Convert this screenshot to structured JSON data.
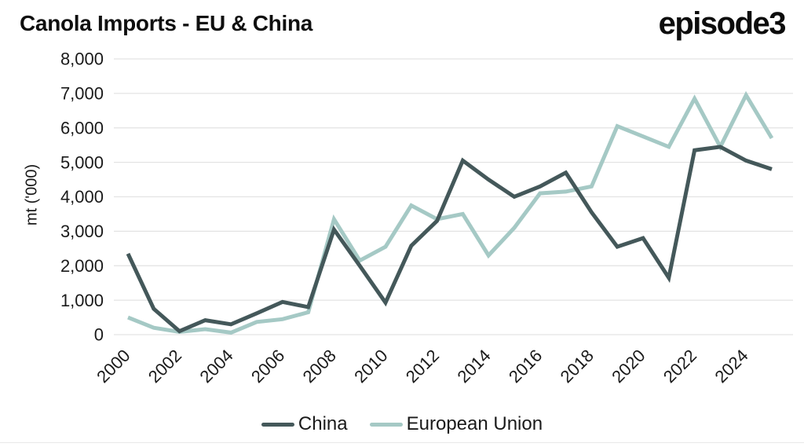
{
  "header": {
    "title": "Canola Imports - EU & China",
    "logo": "episode3"
  },
  "chart_data": {
    "type": "line",
    "title": "Canola Imports - EU & China",
    "xlabel": "",
    "ylabel": "mt ('000)",
    "ylim": [
      0,
      8000
    ],
    "ytick_step": 1000,
    "yticks": [
      0,
      1000,
      2000,
      3000,
      4000,
      5000,
      6000,
      7000,
      8000
    ],
    "xticks": [
      2000,
      2002,
      2004,
      2006,
      2008,
      2010,
      2012,
      2014,
      2016,
      2018,
      2020,
      2022,
      2024
    ],
    "grid": "horizontal",
    "legend_position": "bottom",
    "x": [
      2000,
      2001,
      2002,
      2003,
      2004,
      2005,
      2006,
      2007,
      2008,
      2009,
      2010,
      2011,
      2012,
      2013,
      2014,
      2015,
      2016,
      2017,
      2018,
      2019,
      2020,
      2021,
      2022,
      2023,
      2024,
      2025
    ],
    "series": [
      {
        "name": "China",
        "color": "#44585a",
        "values": [
          2350,
          750,
          100,
          420,
          300,
          620,
          950,
          800,
          3050,
          2000,
          930,
          2580,
          3300,
          5050,
          4500,
          4000,
          4300,
          4700,
          3550,
          2550,
          2800,
          1650,
          5350,
          5450,
          5050,
          4800
        ]
      },
      {
        "name": "European Union",
        "color": "#a5c9c5",
        "values": [
          500,
          200,
          80,
          160,
          60,
          370,
          450,
          650,
          3350,
          2150,
          2550,
          3750,
          3350,
          3500,
          2300,
          3100,
          4100,
          4150,
          4300,
          6050,
          5750,
          5450,
          6850,
          5450,
          6950,
          5700
        ]
      }
    ],
    "axis_text_color": "#1a1a1a",
    "gridline_color": "#e3e3e3"
  }
}
